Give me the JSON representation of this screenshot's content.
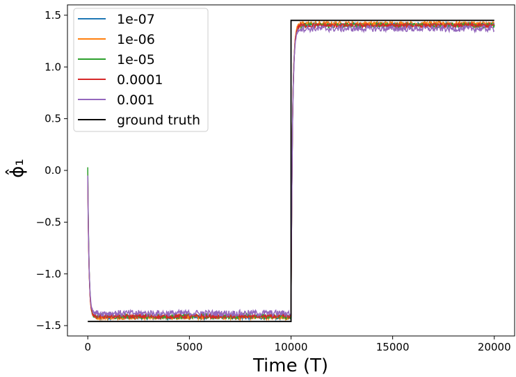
{
  "chart_data": {
    "type": "line",
    "title": "",
    "xlabel": "Time (T)",
    "ylabel": "ϕ̂₁",
    "xlim": [
      -1000,
      21000
    ],
    "ylim": [
      -1.6,
      1.6
    ],
    "xticks": [
      0,
      5000,
      10000,
      15000,
      20000
    ],
    "xtick_labels": [
      "0",
      "5000",
      "10000",
      "15000",
      "20000"
    ],
    "yticks": [
      -1.5,
      -1.0,
      -0.5,
      0.0,
      0.5,
      1.0,
      1.5
    ],
    "ytick_labels": [
      "−1.5",
      "−1.0",
      "−0.5",
      "0.0",
      "0.5",
      "1.0",
      "1.5"
    ],
    "grid": false,
    "legend_position": "top-left",
    "series": [
      {
        "name": "1e-07",
        "color": "#1f77b4",
        "initial": 0.0,
        "low_level": -1.42,
        "high_level": 1.41,
        "noise": 0.02
      },
      {
        "name": "1e-06",
        "color": "#ff7f0e",
        "initial": -0.02,
        "low_level": -1.42,
        "high_level": 1.42,
        "noise": 0.02
      },
      {
        "name": "1e-05",
        "color": "#2ca02c",
        "initial": 0.03,
        "low_level": -1.41,
        "high_level": 1.4,
        "noise": 0.025
      },
      {
        "name": "0.0001",
        "color": "#d62728",
        "initial": -0.07,
        "low_level": -1.41,
        "high_level": 1.4,
        "noise": 0.02
      },
      {
        "name": "0.001",
        "color": "#9467bd",
        "initial": -0.05,
        "low_level": -1.38,
        "high_level": 1.37,
        "noise": 0.03
      },
      {
        "name": "ground truth",
        "color": "#000000",
        "steps": [
          [
            0,
            -1.46
          ],
          [
            10000,
            -1.46
          ],
          [
            10000,
            1.45
          ],
          [
            20000,
            1.45
          ]
        ]
      }
    ]
  }
}
